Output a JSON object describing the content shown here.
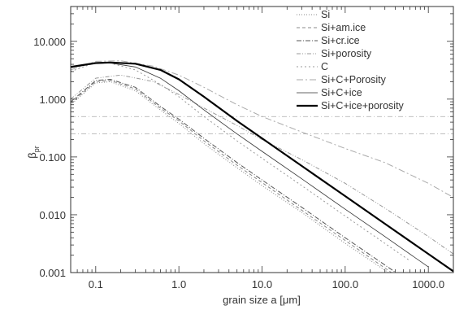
{
  "chart_data": {
    "type": "line",
    "title": "",
    "xlabel": "grain size a [μm]",
    "ylabel_main": "β",
    "ylabel_sub": "pr",
    "x_scale": "log",
    "y_scale": "log",
    "xlim": [
      0.05,
      2000
    ],
    "ylim": [
      0.001,
      40
    ],
    "x_ticks": [
      {
        "value": 0.1,
        "label": "0.1"
      },
      {
        "value": 1,
        "label": "1.0"
      },
      {
        "value": 10,
        "label": "10.0"
      },
      {
        "value": 100,
        "label": "100.0"
      },
      {
        "value": 1000,
        "label": "1000.0"
      }
    ],
    "y_ticks": [
      {
        "value": 0.001,
        "label": "0.001"
      },
      {
        "value": 0.01,
        "label": "0.010"
      },
      {
        "value": 0.1,
        "label": "0.100"
      },
      {
        "value": 1,
        "label": "1.000"
      },
      {
        "value": 10,
        "label": "10.000"
      }
    ],
    "reference_lines": [
      0.5,
      0.25
    ],
    "legend_position": "top-right",
    "series": [
      {
        "name": "Si",
        "color": "#888888",
        "dash": "1,2",
        "width": 1,
        "x": [
          0.05,
          0.1,
          0.15,
          0.3,
          0.6,
          1,
          2,
          5,
          10,
          30,
          100,
          300,
          600
        ],
        "y": [
          0.8,
          1.9,
          2.0,
          1.4,
          0.65,
          0.38,
          0.17,
          0.065,
          0.032,
          0.011,
          0.0032,
          0.0011,
          0.00055
        ]
      },
      {
        "name": "Si+am.ice",
        "color": "#888888",
        "dash": "4,3",
        "width": 1,
        "x": [
          0.05,
          0.1,
          0.15,
          0.3,
          0.6,
          1,
          2,
          5,
          10,
          30,
          100,
          300,
          600
        ],
        "y": [
          0.85,
          2.0,
          2.1,
          1.5,
          0.7,
          0.42,
          0.19,
          0.072,
          0.036,
          0.012,
          0.0036,
          0.0012,
          0.0006
        ]
      },
      {
        "name": "Si+cr.ice",
        "color": "#555555",
        "dash": "6,2,1,2",
        "width": 1,
        "x": [
          0.05,
          0.1,
          0.15,
          0.3,
          0.6,
          1,
          2,
          5,
          10,
          30,
          100,
          300,
          600
        ],
        "y": [
          0.9,
          2.1,
          2.2,
          1.6,
          0.75,
          0.45,
          0.21,
          0.08,
          0.04,
          0.0135,
          0.004,
          0.00135,
          0.00068
        ]
      },
      {
        "name": "Si+porosity",
        "color": "#999999",
        "dash": "5,2,1,2,1,2",
        "width": 1,
        "x": [
          0.05,
          0.1,
          0.2,
          0.5,
          1,
          2,
          5,
          10,
          30,
          100,
          300,
          1000,
          2000
        ],
        "y": [
          1.0,
          2.3,
          2.6,
          2.0,
          1.2,
          0.7,
          0.35,
          0.2,
          0.09,
          0.035,
          0.013,
          0.0042,
          0.0021
        ]
      },
      {
        "name": "C",
        "color": "#999999",
        "dash": "2,3",
        "width": 1,
        "x": [
          0.05,
          0.1,
          0.15,
          0.3,
          0.6,
          1,
          2,
          5,
          10,
          30,
          100,
          300,
          600
        ],
        "y": [
          3.0,
          4.3,
          4.2,
          3.2,
          1.8,
          1.1,
          0.5,
          0.19,
          0.095,
          0.032,
          0.0095,
          0.0032,
          0.0016
        ]
      },
      {
        "name": "Si+C+Porosity",
        "color": "#aaaaaa",
        "dash": "8,3,2,3",
        "width": 1,
        "x": [
          0.05,
          0.1,
          0.2,
          0.5,
          1,
          2,
          5,
          10,
          30,
          100,
          300,
          1000,
          2000
        ],
        "y": [
          3.2,
          4.5,
          4.6,
          3.7,
          2.6,
          1.6,
          0.8,
          0.5,
          0.27,
          0.14,
          0.08,
          0.035,
          0.02
        ]
      },
      {
        "name": "Si+C+ice",
        "color": "#333333",
        "dash": "",
        "width": 0.8,
        "x": [
          0.05,
          0.1,
          0.15,
          0.3,
          0.6,
          1,
          2,
          5,
          10,
          30,
          100,
          300,
          1000
        ],
        "y": [
          3.5,
          4.2,
          4.2,
          3.6,
          2.3,
          1.4,
          0.65,
          0.25,
          0.125,
          0.042,
          0.0125,
          0.0042,
          0.00125
        ]
      },
      {
        "name": "Si+C+ice+porosity",
        "color": "#000000",
        "dash": "",
        "width": 2.2,
        "x": [
          0.05,
          0.1,
          0.15,
          0.3,
          0.6,
          1,
          2,
          5,
          10,
          30,
          100,
          300,
          1000,
          2000
        ],
        "y": [
          3.6,
          4.2,
          4.3,
          4.1,
          3.2,
          2.2,
          1.1,
          0.42,
          0.21,
          0.07,
          0.021,
          0.007,
          0.0021,
          0.00105
        ]
      }
    ]
  }
}
